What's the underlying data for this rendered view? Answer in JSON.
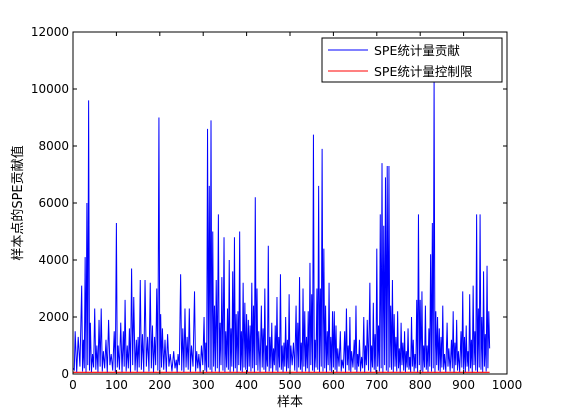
{
  "chart_data": {
    "type": "line",
    "title": "",
    "xlabel": "样本",
    "ylabel": "样本点的SPE贡献值",
    "xlim": [
      0,
      1000
    ],
    "ylim": [
      0,
      12000
    ],
    "xticks": [
      0,
      100,
      200,
      300,
      400,
      500,
      600,
      700,
      800,
      900,
      1000
    ],
    "yticks": [
      0,
      2000,
      4000,
      6000,
      8000,
      10000,
      12000
    ],
    "xtick_labels": [
      "0",
      "100",
      "200",
      "300",
      "400",
      "500",
      "600",
      "700",
      "800",
      "900",
      "1000"
    ],
    "ytick_labels": [
      "0",
      "2000",
      "4000",
      "6000",
      "8000",
      "10000",
      "12000"
    ],
    "grid": false,
    "legend_position": "top-right",
    "series": [
      {
        "name": "SPE统计量贡献",
        "color": "#0000ff",
        "x_range": [
          1,
          960
        ],
        "peaks": [
          [
            5,
            1500
          ],
          [
            12,
            1300
          ],
          [
            20,
            3100
          ],
          [
            24,
            1200
          ],
          [
            28,
            4100
          ],
          [
            32,
            6000
          ],
          [
            36,
            9600
          ],
          [
            40,
            1800
          ],
          [
            45,
            700
          ],
          [
            50,
            2300
          ],
          [
            55,
            1000
          ],
          [
            60,
            1900
          ],
          [
            65,
            2300
          ],
          [
            70,
            800
          ],
          [
            76,
            1200
          ],
          [
            82,
            1900
          ],
          [
            88,
            700
          ],
          [
            95,
            1500
          ],
          [
            100,
            5300
          ],
          [
            104,
            1000
          ],
          [
            110,
            1800
          ],
          [
            116,
            1500
          ],
          [
            120,
            2600
          ],
          [
            125,
            1000
          ],
          [
            130,
            1600
          ],
          [
            135,
            3700
          ],
          [
            140,
            2700
          ],
          [
            146,
            1200
          ],
          [
            150,
            1300
          ],
          [
            155,
            3300
          ],
          [
            160,
            1400
          ],
          [
            166,
            3300
          ],
          [
            172,
            1300
          ],
          [
            178,
            3200
          ],
          [
            183,
            1700
          ],
          [
            188,
            1300
          ],
          [
            193,
            3000
          ],
          [
            198,
            9000
          ],
          [
            202,
            2100
          ],
          [
            206,
            1600
          ],
          [
            212,
            1200
          ],
          [
            218,
            1400
          ],
          [
            224,
            700
          ],
          [
            232,
            800
          ],
          [
            238,
            500
          ],
          [
            242,
            700
          ],
          [
            248,
            3500
          ],
          [
            253,
            1600
          ],
          [
            258,
            2300
          ],
          [
            263,
            1300
          ],
          [
            268,
            2300
          ],
          [
            273,
            1000
          ],
          [
            280,
            2900
          ],
          [
            285,
            800
          ],
          [
            290,
            700
          ],
          [
            296,
            1000
          ],
          [
            302,
            2000
          ],
          [
            306,
            1100
          ],
          [
            310,
            8600
          ],
          [
            314,
            6600
          ],
          [
            318,
            8900
          ],
          [
            322,
            5000
          ],
          [
            326,
            2400
          ],
          [
            330,
            3300
          ],
          [
            335,
            5600
          ],
          [
            339,
            1800
          ],
          [
            343,
            3400
          ],
          [
            348,
            4800
          ],
          [
            352,
            1500
          ],
          [
            356,
            2300
          ],
          [
            360,
            4000
          ],
          [
            364,
            1600
          ],
          [
            368,
            3600
          ],
          [
            372,
            4800
          ],
          [
            376,
            2100
          ],
          [
            380,
            2200
          ],
          [
            384,
            5000
          ],
          [
            388,
            1500
          ],
          [
            392,
            3200
          ],
          [
            396,
            2500
          ],
          [
            400,
            2100
          ],
          [
            404,
            1900
          ],
          [
            408,
            1700
          ],
          [
            412,
            3200
          ],
          [
            416,
            2400
          ],
          [
            420,
            6200
          ],
          [
            424,
            3000
          ],
          [
            428,
            1500
          ],
          [
            434,
            2400
          ],
          [
            438,
            1600
          ],
          [
            442,
            3000
          ],
          [
            446,
            1000
          ],
          [
            450,
            4500
          ],
          [
            454,
            1300
          ],
          [
            458,
            1800
          ],
          [
            462,
            900
          ],
          [
            466,
            1700
          ],
          [
            470,
            2700
          ],
          [
            474,
            1300
          ],
          [
            478,
            3500
          ],
          [
            482,
            1000
          ],
          [
            486,
            1100
          ],
          [
            490,
            2000
          ],
          [
            494,
            1200
          ],
          [
            498,
            2800
          ],
          [
            502,
            1000
          ],
          [
            508,
            1100
          ],
          [
            514,
            2400
          ],
          [
            518,
            1800
          ],
          [
            522,
            3400
          ],
          [
            526,
            1100
          ],
          [
            530,
            3000
          ],
          [
            534,
            2200
          ],
          [
            538,
            1300
          ],
          [
            542,
            2200
          ],
          [
            546,
            3900
          ],
          [
            550,
            2800
          ],
          [
            554,
            8400
          ],
          [
            558,
            1200
          ],
          [
            562,
            3000
          ],
          [
            566,
            6600
          ],
          [
            570,
            3000
          ],
          [
            574,
            7900
          ],
          [
            578,
            4400
          ],
          [
            582,
            2400
          ],
          [
            586,
            1500
          ],
          [
            590,
            3200
          ],
          [
            594,
            1300
          ],
          [
            598,
            2200
          ],
          [
            602,
            2200
          ],
          [
            606,
            1700
          ],
          [
            610,
            900
          ],
          [
            616,
            1500
          ],
          [
            620,
            500
          ],
          [
            626,
            1500
          ],
          [
            630,
            2300
          ],
          [
            634,
            1000
          ],
          [
            638,
            2000
          ],
          [
            642,
            800
          ],
          [
            648,
            1200
          ],
          [
            652,
            2400
          ],
          [
            656,
            700
          ],
          [
            660,
            1200
          ],
          [
            665,
            600
          ],
          [
            670,
            2000
          ],
          [
            674,
            1000
          ],
          [
            678,
            1900
          ],
          [
            684,
            3200
          ],
          [
            688,
            1000
          ],
          [
            692,
            2500
          ],
          [
            696,
            1400
          ],
          [
            700,
            4400
          ],
          [
            704,
            1700
          ],
          [
            708,
            5600
          ],
          [
            712,
            7400
          ],
          [
            716,
            5200
          ],
          [
            720,
            6900
          ],
          [
            724,
            7300
          ],
          [
            728,
            7300
          ],
          [
            732,
            2400
          ],
          [
            736,
            3300
          ],
          [
            740,
            2100
          ],
          [
            744,
            1300
          ],
          [
            748,
            2200
          ],
          [
            752,
            900
          ],
          [
            756,
            1800
          ],
          [
            760,
            1100
          ],
          [
            764,
            1500
          ],
          [
            768,
            800
          ],
          [
            772,
            1600
          ],
          [
            776,
            600
          ],
          [
            780,
            2000
          ],
          [
            784,
            1200
          ],
          [
            788,
            700
          ],
          [
            792,
            2600
          ],
          [
            796,
            5600
          ],
          [
            800,
            2600
          ],
          [
            804,
            2900
          ],
          [
            808,
            1000
          ],
          [
            812,
            2400
          ],
          [
            816,
            1000
          ],
          [
            820,
            1600
          ],
          [
            824,
            4200
          ],
          [
            828,
            5300
          ],
          [
            832,
            10300
          ],
          [
            836,
            2200
          ],
          [
            840,
            2000
          ],
          [
            844,
            1600
          ],
          [
            848,
            1300
          ],
          [
            852,
            2400
          ],
          [
            856,
            700
          ],
          [
            862,
            1800
          ],
          [
            866,
            900
          ],
          [
            872,
            1200
          ],
          [
            876,
            2200
          ],
          [
            880,
            1100
          ],
          [
            884,
            1900
          ],
          [
            888,
            800
          ],
          [
            894,
            1500
          ],
          [
            898,
            2900
          ],
          [
            902,
            1300
          ],
          [
            906,
            1700
          ],
          [
            910,
            800
          ],
          [
            914,
            2800
          ],
          [
            918,
            1200
          ],
          [
            922,
            3100
          ],
          [
            926,
            1500
          ],
          [
            930,
            5600
          ],
          [
            934,
            2300
          ],
          [
            938,
            5600
          ],
          [
            942,
            2000
          ],
          [
            946,
            3600
          ],
          [
            950,
            1400
          ],
          [
            954,
            3800
          ],
          [
            958,
            2200
          ]
        ]
      },
      {
        "name": "SPE统计量控制限",
        "color": "#ff0000",
        "x": [
          1,
          960
        ],
        "y": [
          60,
          60
        ]
      }
    ]
  }
}
